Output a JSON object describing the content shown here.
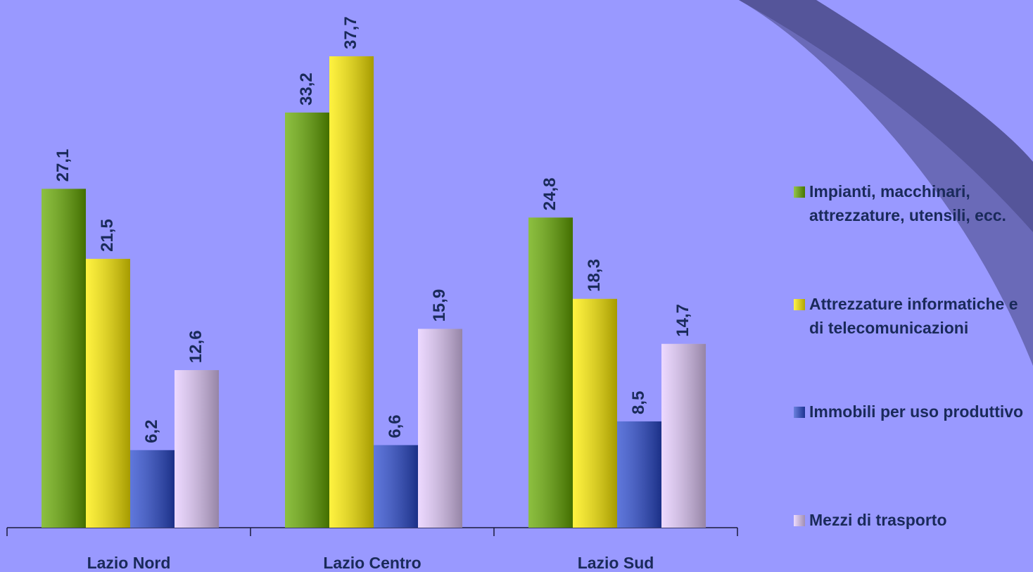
{
  "chart_data": {
    "type": "bar",
    "categories": [
      "Lazio Nord",
      "Lazio Centro",
      "Lazio Sud"
    ],
    "series": [
      {
        "name": "Impianti, macchinari, attrezzature, utensili, ecc.",
        "color": "#66aa00",
        "values": [
          27.1,
          33.2,
          24.8
        ],
        "value_labels": [
          "27,1",
          "33,2",
          "24,8"
        ]
      },
      {
        "name": "Attrezzature informatiche e di telecomunicazioni",
        "color": "#ffee00",
        "values": [
          21.5,
          37.7,
          18.3
        ],
        "value_labels": [
          "21,5",
          "37,7",
          "18,3"
        ]
      },
      {
        "name": "Immobili per uso produttivo",
        "color": "#2a4ad0",
        "values": [
          6.2,
          6.6,
          8.5
        ],
        "value_labels": [
          "6,2",
          "6,6",
          "8,5"
        ]
      },
      {
        "name": "Mezzi di trasporto",
        "color": "#e6ccff",
        "values": [
          12.6,
          15.9,
          14.7
        ],
        "value_labels": [
          "12,6",
          "15,9",
          "14,7"
        ]
      }
    ]
  }
}
